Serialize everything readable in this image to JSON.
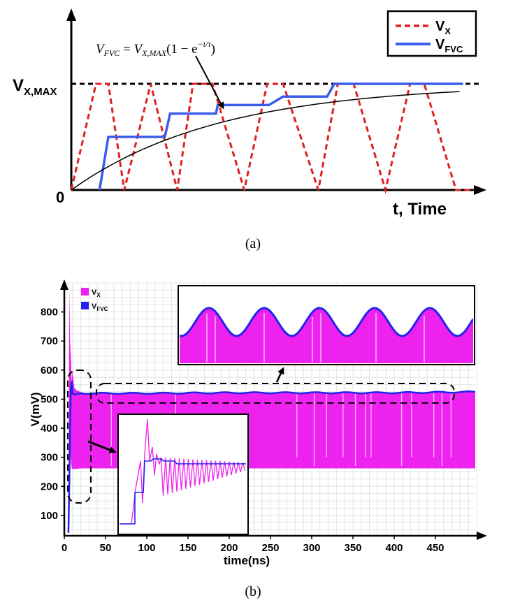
{
  "chart_data": [
    {
      "type": "line",
      "panel_label": "(a)",
      "xlabel": "t, Time",
      "y_tick_labels": [
        "V",
        "0"
      ],
      "y_tick_sub": "X,MAX",
      "equation": {
        "lhs": "V",
        "lhs_sub": "FVC",
        "rhs_v": "V",
        "rhs_sub": "X,MAX",
        "rhs_tail": "(1 − e",
        "exp": "−t/τ",
        "close": ")"
      },
      "legend": [
        {
          "main": "V",
          "sub": "X",
          "color": "#e02020",
          "style": "dashed"
        },
        {
          "main": "V",
          "sub": "FVC",
          "color": "#3a5de8",
          "style": "solid"
        }
      ],
      "reference_line": {
        "label": "V_X,MAX",
        "value": 1.0
      },
      "series": [
        {
          "name": "V_X",
          "x": [
            0,
            0.7,
            1.05,
            1.5,
            2.25,
            3.0,
            3.45,
            4.0,
            4.9,
            5.55,
            6.0,
            7.0,
            7.55,
            8.0,
            8.9,
            9.6,
            10.0,
            10.9,
            11.4
          ],
          "y": [
            0,
            1.0,
            1.0,
            0,
            1.0,
            0,
            1.0,
            1.0,
            0,
            1.0,
            1.0,
            0,
            1.0,
            1.0,
            0,
            1.0,
            1.0,
            0,
            0
          ]
        },
        {
          "name": "V_FVC",
          "x": [
            0.8,
            1.05,
            2.65,
            2.8,
            4.1,
            4.15,
            5.6,
            6.0,
            7.25,
            7.45,
            11.1
          ],
          "y": [
            0,
            0.5,
            0.5,
            0.72,
            0.72,
            0.8,
            0.8,
            0.88,
            0.88,
            1.0,
            1.0
          ]
        },
        {
          "name": "V_X,MAX(1-e^(-t/τ))",
          "x": [
            0,
            0.5,
            1,
            1.5,
            2,
            2.5,
            3,
            3.5,
            4,
            4.5,
            5,
            5.5,
            6,
            6.5,
            7,
            7.5,
            8,
            9,
            10,
            11
          ],
          "y": [
            0,
            0.11,
            0.21,
            0.29,
            0.37,
            0.44,
            0.5,
            0.55,
            0.6,
            0.64,
            0.68,
            0.71,
            0.74,
            0.77,
            0.79,
            0.81,
            0.83,
            0.86,
            0.89,
            0.91
          ]
        }
      ]
    },
    {
      "type": "line",
      "panel_label": "(b)",
      "xlabel": "time(ns)",
      "ylabel": "V(mV)",
      "xlim": [
        0,
        500
      ],
      "ylim": [
        30,
        900
      ],
      "x_ticks": [
        0,
        50,
        100,
        150,
        200,
        250,
        300,
        350,
        400,
        450
      ],
      "y_ticks": [
        100,
        200,
        300,
        400,
        500,
        600,
        700,
        800
      ],
      "grid": true,
      "legend_position": "top-left",
      "legend": [
        {
          "main": "V",
          "sub": "X",
          "color": "#ee22ee"
        },
        {
          "main": "V",
          "sub": "FVC",
          "color": "#2222ee"
        }
      ],
      "series": [
        {
          "name": "V_X",
          "x": [
            5,
            6,
            7,
            8,
            9,
            10,
            12,
            15,
            20,
            30,
            50,
            100,
            200,
            300,
            400,
            500
          ],
          "y_max": [
            40,
            880,
            700,
            650,
            560,
            600,
            540,
            530,
            525,
            522,
            522,
            522,
            522,
            522,
            522,
            525
          ],
          "y_min": [
            40,
            200,
            250,
            300,
            260,
            260,
            260,
            260,
            262,
            262,
            262,
            262,
            262,
            262,
            262,
            262
          ]
        },
        {
          "name": "V_FVC",
          "x": [
            5,
            6,
            7,
            8,
            9,
            10,
            12,
            15,
            20,
            50,
            100,
            200,
            300,
            400,
            500
          ],
          "y": [
            40,
            200,
            400,
            540,
            560,
            520,
            515,
            518,
            520,
            520,
            520,
            522,
            522,
            522,
            525
          ]
        }
      ]
    }
  ]
}
